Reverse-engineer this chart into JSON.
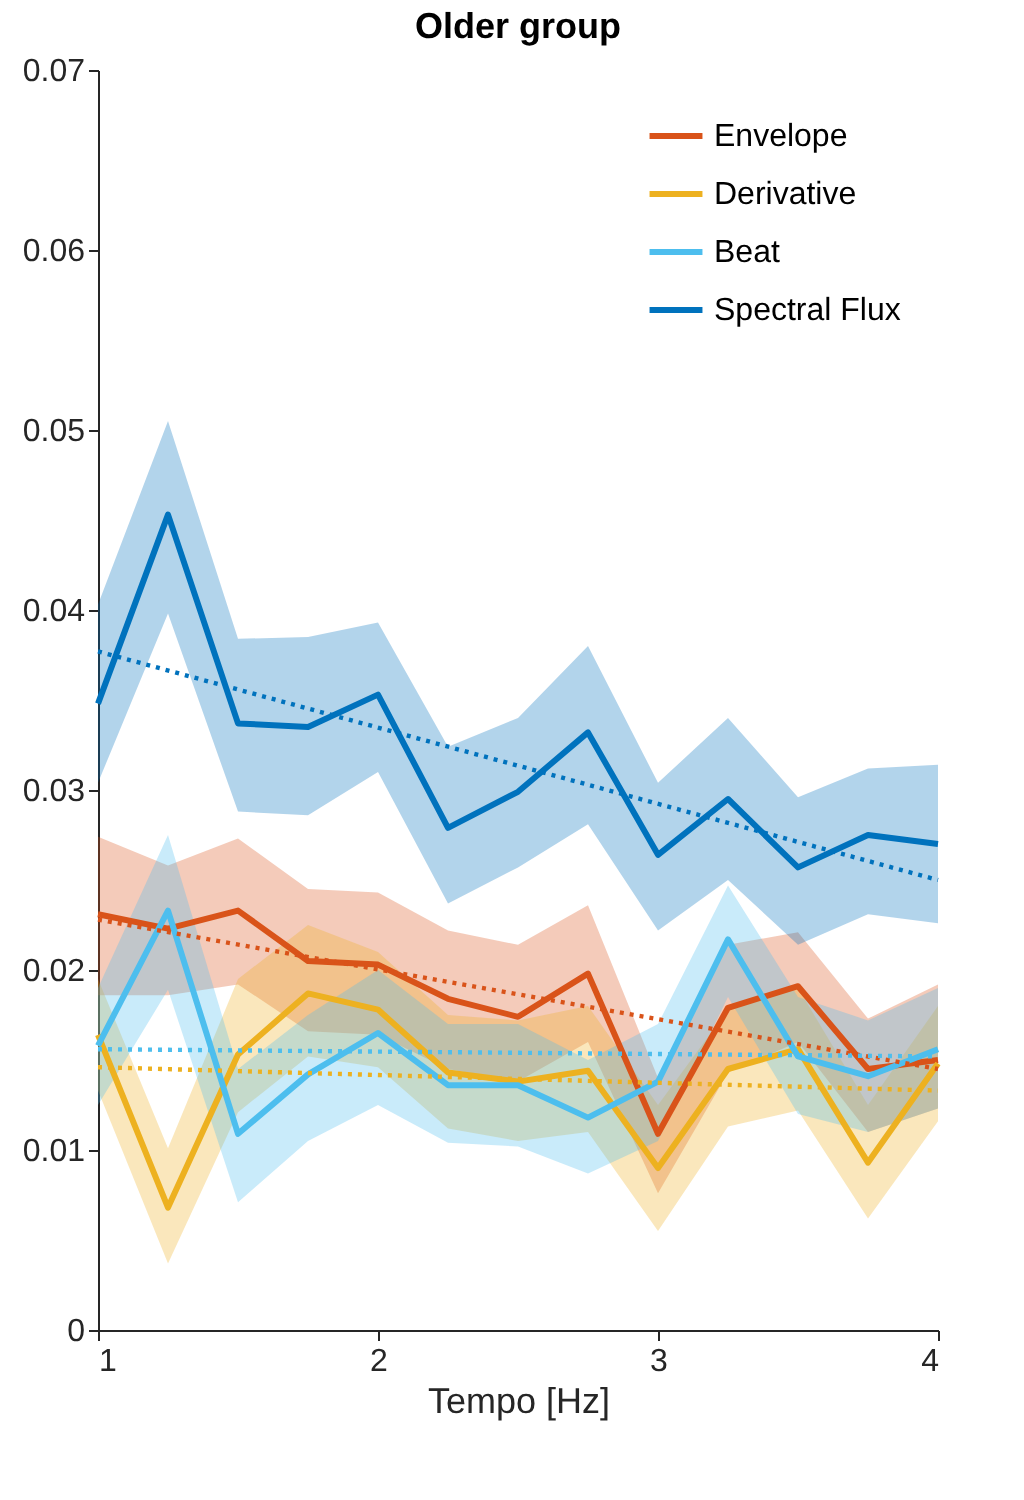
{
  "chart_data": {
    "type": "line",
    "title": "Older group",
    "xlabel": "Tempo [Hz]",
    "x": [
      1,
      1.25,
      1.5,
      1.75,
      2,
      2.25,
      2.5,
      2.75,
      3,
      3.25,
      3.5,
      3.75,
      4
    ],
    "xlim": [
      1,
      4
    ],
    "xticks": [
      1,
      2,
      3,
      4
    ],
    "ylim": [
      0,
      0.07
    ],
    "yticks": [
      0,
      0.01,
      0.02,
      0.03,
      0.04,
      0.05,
      0.06,
      0.07
    ],
    "grid": false,
    "legend": "top right",
    "marker": "none",
    "line_style": "solid",
    "series": [
      {
        "name": "Envelope",
        "color": "#d95319",
        "values": [
          0.0231,
          0.0223,
          0.0233,
          0.0205,
          0.0203,
          0.0184,
          0.0174,
          0.0198,
          0.0109,
          0.0179,
          0.0191,
          0.0145,
          0.015
        ],
        "upper": [
          0.0274,
          0.0258,
          0.0273,
          0.0245,
          0.0243,
          0.0222,
          0.0214,
          0.0236,
          0.014,
          0.0214,
          0.0221,
          0.0173,
          0.0192
        ],
        "lower": [
          0.0186,
          0.0186,
          0.0192,
          0.0166,
          0.0164,
          0.0145,
          0.0138,
          0.016,
          0.0076,
          0.0143,
          0.016,
          0.011,
          0.0123
        ]
      },
      {
        "name": "Derivative",
        "color": "#edb120",
        "values": [
          0.0164,
          0.0068,
          0.0153,
          0.0187,
          0.0178,
          0.0143,
          0.0138,
          0.0144,
          0.009,
          0.0145,
          0.0156,
          0.0093,
          0.0148
        ],
        "upper": [
          0.0195,
          0.0101,
          0.0195,
          0.0225,
          0.021,
          0.0175,
          0.0172,
          0.018,
          0.0125,
          0.0178,
          0.019,
          0.0125,
          0.018
        ],
        "lower": [
          0.0133,
          0.0037,
          0.0121,
          0.0152,
          0.0146,
          0.0112,
          0.0105,
          0.011,
          0.0055,
          0.0113,
          0.0122,
          0.0062,
          0.0116
        ]
      },
      {
        "name": "Beat",
        "color": "#4dbeee",
        "values": [
          0.0158,
          0.0233,
          0.0109,
          0.0142,
          0.0165,
          0.0136,
          0.0136,
          0.0118,
          0.0138,
          0.0217,
          0.0152,
          0.0141,
          0.0156
        ],
        "upper": [
          0.019,
          0.0275,
          0.0145,
          0.0175,
          0.02,
          0.017,
          0.017,
          0.015,
          0.017,
          0.0247,
          0.0185,
          0.0172,
          0.019
        ],
        "lower": [
          0.0125,
          0.0189,
          0.0071,
          0.0105,
          0.0125,
          0.0104,
          0.0102,
          0.0087,
          0.0105,
          0.0185,
          0.012,
          0.011,
          0.0123
        ]
      },
      {
        "name": "Spectral Flux",
        "color": "#0072bd",
        "values": [
          0.0348,
          0.0453,
          0.0337,
          0.0335,
          0.0353,
          0.0279,
          0.0299,
          0.0332,
          0.0264,
          0.0295,
          0.0257,
          0.0275,
          0.027
        ],
        "upper": [
          0.0403,
          0.0505,
          0.0384,
          0.0385,
          0.0393,
          0.0324,
          0.034,
          0.038,
          0.0304,
          0.034,
          0.0296,
          0.0312,
          0.0314
        ],
        "lower": [
          0.0304,
          0.0398,
          0.0288,
          0.0286,
          0.031,
          0.0237,
          0.0257,
          0.0281,
          0.0222,
          0.025,
          0.0214,
          0.0231,
          0.0226
        ]
      },
      {
        "type": "line",
        "line_style": "dotted",
        "color": "#d95319",
        "values": [
          0.0228,
          null,
          null,
          null,
          null,
          null,
          null,
          null,
          null,
          null,
          null,
          null,
          0.0145
        ]
      },
      {
        "type": "line",
        "line_style": "dotted",
        "color": "#edb120",
        "values": [
          0.0146,
          null,
          null,
          null,
          null,
          null,
          null,
          null,
          null,
          null,
          null,
          null,
          0.0133
        ]
      },
      {
        "type": "line",
        "line_style": "dotted",
        "color": "#4dbeee",
        "values": [
          0.0156,
          null,
          null,
          null,
          null,
          null,
          null,
          null,
          null,
          null,
          null,
          null,
          0.0152
        ]
      },
      {
        "type": "line",
        "line_style": "dotted",
        "color": "#0072bd",
        "values": [
          0.0377,
          null,
          null,
          null,
          null,
          null,
          null,
          null,
          null,
          null,
          null,
          null,
          0.025
        ]
      }
    ]
  }
}
